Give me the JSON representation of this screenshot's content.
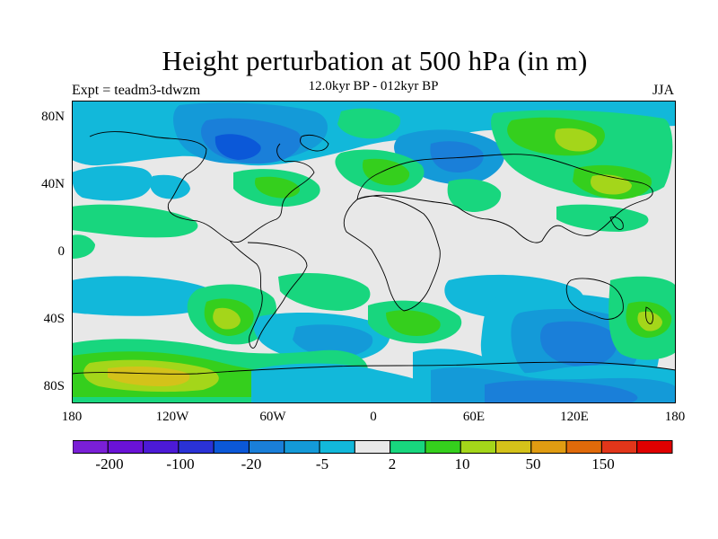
{
  "header": {
    "title": "Height perturbation at 500 hPa (in m)",
    "experiment": "Expt = teadm3-tdwzm",
    "subtitle": "12.0kyr BP - 012kyr BP",
    "season": "JJA"
  },
  "map": {
    "projection": "cylindrical equidistant",
    "lat_labels": [
      "80N",
      "40N",
      "0",
      "40S",
      "80S"
    ],
    "lon_labels": [
      "180",
      "120W",
      "60W",
      "0",
      "60E",
      "120E",
      "180"
    ],
    "background_fill": "#e8e8e8"
  },
  "colorbar": {
    "colors": [
      "#7a1fd6",
      "#6a12d6",
      "#4c1ad6",
      "#2a32d6",
      "#0b58d8",
      "#1a7fd9",
      "#149ad8",
      "#12b8da",
      "#e8e8e8",
      "#18d67e",
      "#35cf1d",
      "#a4d61a",
      "#d4c21a",
      "#e09c12",
      "#e06a0a",
      "#e2361a",
      "#e00000"
    ],
    "labels": [
      "-200",
      "-100",
      "-20",
      "-5",
      "2",
      "10",
      "50",
      "150"
    ]
  }
}
